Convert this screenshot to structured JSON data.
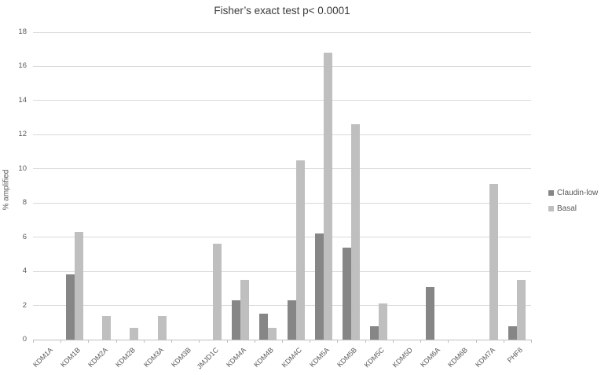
{
  "title": "Fisher’s exact test p< 0.0001",
  "y_axis": {
    "label": "% amplified",
    "tick_labels": [
      "0",
      "2",
      "4",
      "6",
      "8",
      "10",
      "12",
      "14",
      "16",
      "18"
    ]
  },
  "legend": {
    "items": [
      {
        "label": "Claudin-low",
        "color": "#868686"
      },
      {
        "label": "Basal",
        "color": "#bfbfbf"
      }
    ]
  },
  "chart_data": {
    "type": "bar",
    "title": "Fisher’s exact test p< 0.0001",
    "categories": [
      "KDM1A",
      "KDM1B",
      "KDM2A",
      "KDM2B",
      "KDM3A",
      "KDM3B",
      "JMJD1C",
      "KDM4A",
      "KDM4B",
      "KDM4C",
      "KDM5A",
      "KDM5B",
      "KDM5C",
      "KDM5D",
      "KDM6A",
      "KDM6B",
      "KDM7A",
      "PHF8"
    ],
    "series": [
      {
        "name": "Claudin-low",
        "color": "#868686",
        "values": [
          0,
          3.8,
          0,
          0,
          0,
          0,
          0,
          2.3,
          1.5,
          2.3,
          6.2,
          5.4,
          0.8,
          0,
          3.1,
          0,
          0,
          0.8
        ]
      },
      {
        "name": "Basal",
        "color": "#bfbfbf",
        "values": [
          0,
          6.3,
          1.4,
          0.7,
          1.4,
          0,
          5.6,
          3.5,
          0.7,
          10.5,
          16.8,
          12.6,
          2.1,
          0,
          0,
          0,
          9.1,
          3.5
        ]
      }
    ],
    "xlabel": "",
    "ylabel": "% amplified",
    "ylim": [
      0,
      18
    ],
    "ytick_step": 2,
    "grid": true,
    "gridline_color": "#d9d9d9",
    "legend_position": "right"
  }
}
